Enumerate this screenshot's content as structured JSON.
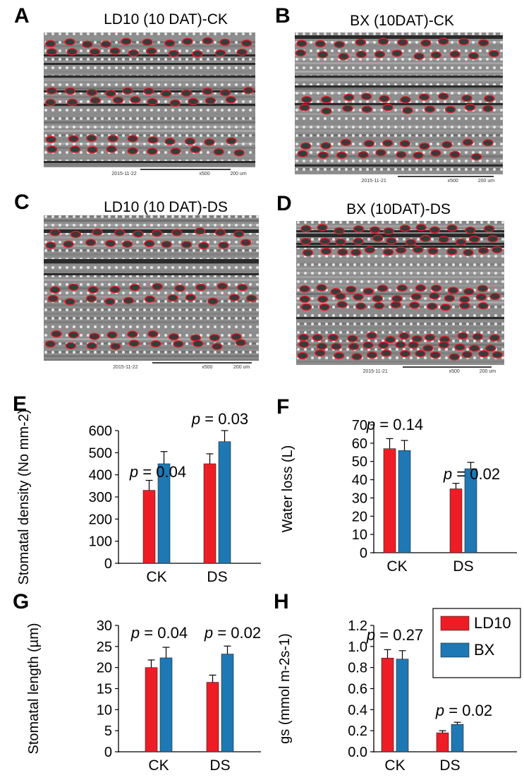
{
  "panels": {
    "a": {
      "letter": "A",
      "title": "LD10 (10 DAT)-CK",
      "footer_date": "2015-11-22",
      "footer_mag": "x500",
      "footer_scale": "200 um"
    },
    "b": {
      "letter": "B",
      "title": "BX (10DAT)-CK",
      "footer_date": "2015-11-21",
      "footer_mag": "x500",
      "footer_scale": "200 um"
    },
    "c": {
      "letter": "C",
      "title": "LD10 (10 DAT)-DS",
      "footer_date": "2015-11-22",
      "footer_mag": "x500",
      "footer_scale": "200 um"
    },
    "d": {
      "letter": "D",
      "title": "BX (10DAT)-DS",
      "footer_date": "2015-11-21",
      "footer_mag": "x500",
      "footer_scale": "200 um"
    }
  },
  "colors": {
    "LD10": "#ee1c25",
    "BX": "#1e78b4",
    "marker": "#e0202a"
  },
  "legend": {
    "items": [
      "LD10",
      "BX"
    ],
    "placement": "top-right of panel H"
  },
  "chart_data": [
    {
      "panel": "E",
      "type": "bar",
      "categories": [
        "CK",
        "DS"
      ],
      "series": [
        {
          "name": "LD10",
          "values": [
            330,
            450
          ],
          "errors": [
            45,
            45
          ]
        },
        {
          "name": "BX",
          "values": [
            450,
            550
          ],
          "errors": [
            55,
            50
          ]
        }
      ],
      "ylabel": "Stomatal density (No mm-2)",
      "ylim": [
        0,
        600
      ],
      "yticks": [
        "0",
        "100",
        "200",
        "300",
        "400",
        "500",
        "600"
      ],
      "annotations": [
        "0.04",
        "0.03"
      ]
    },
    {
      "panel": "F",
      "type": "bar",
      "categories": [
        "CK",
        "DS"
      ],
      "series": [
        {
          "name": "LD10",
          "values": [
            57,
            35
          ],
          "errors": [
            5.5,
            3
          ]
        },
        {
          "name": "BX",
          "values": [
            56,
            46
          ],
          "errors": [
            5.5,
            3.5
          ]
        }
      ],
      "ylabel": "Water loss (L)",
      "ylim": [
        0,
        70
      ],
      "yticks": [
        "0",
        "10",
        "20",
        "30",
        "40",
        "50",
        "60",
        "70"
      ],
      "annotations": [
        "0.14",
        "0.02"
      ]
    },
    {
      "panel": "G",
      "type": "bar",
      "categories": [
        "CK",
        "DS"
      ],
      "series": [
        {
          "name": "LD10",
          "values": [
            20,
            16.5
          ],
          "errors": [
            1.8,
            1.7
          ]
        },
        {
          "name": "BX",
          "values": [
            22.3,
            23.2
          ],
          "errors": [
            2.5,
            1.9
          ]
        }
      ],
      "ylabel": "Stomatal length (µm)",
      "ylim": [
        0,
        30
      ],
      "yticks": [
        "0",
        "5",
        "10",
        "15",
        "20",
        "25",
        "30"
      ],
      "annotations": [
        "0.04",
        "0.02"
      ]
    },
    {
      "panel": "H",
      "type": "bar",
      "categories": [
        "CK",
        "DS"
      ],
      "series": [
        {
          "name": "LD10",
          "values": [
            0.89,
            0.18
          ],
          "errors": [
            0.08,
            0.02
          ]
        },
        {
          "name": "BX",
          "values": [
            0.88,
            0.26
          ],
          "errors": [
            0.08,
            0.02
          ]
        }
      ],
      "ylabel": "gs (mmol m-2s-1)",
      "ylim": [
        0,
        1.2
      ],
      "yticks": [
        "0.0",
        "0.2",
        "0.4",
        "0.6",
        "0.8",
        "1.0",
        "1.2"
      ],
      "annotations": [
        "0.27",
        "0.02"
      ]
    }
  ]
}
